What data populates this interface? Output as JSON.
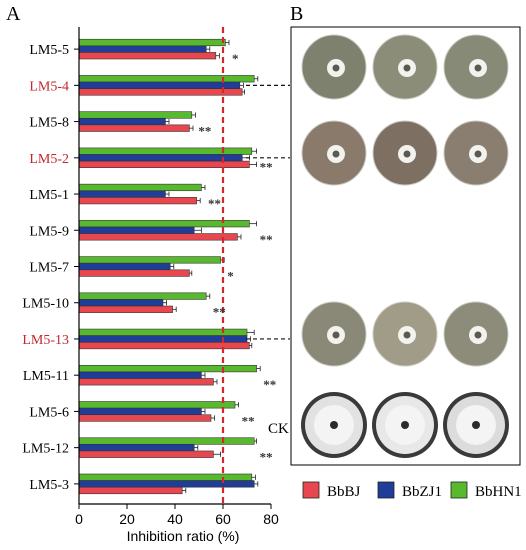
{
  "panels": {
    "a": "A",
    "b": "B"
  },
  "chart_data": {
    "type": "bar",
    "orientation": "horizontal",
    "xlabel": "Inhibition ratio (%)",
    "xlim": [
      0,
      80
    ],
    "xticks": [
      "0",
      "20",
      "40",
      "60",
      "80"
    ],
    "reference_line": 60,
    "categories": [
      "LM5-5",
      "LM5-4",
      "LM5-8",
      "LM5-2",
      "LM5-1",
      "LM5-9",
      "LM5-7",
      "LM5-10",
      "LM5-13",
      "LM5-11",
      "LM5-6",
      "LM5-12",
      "LM5-3"
    ],
    "highlighted": [
      "LM5-4",
      "LM5-2",
      "LM5-13"
    ],
    "significance": [
      "*",
      "",
      "**",
      "**",
      "**",
      "**",
      "*",
      "**",
      "",
      "**",
      "**",
      "**",
      ""
    ],
    "series": [
      {
        "name": "BbHN1",
        "color": "#58b82e",
        "values": [
          61,
          73,
          47,
          72,
          51,
          71,
          59,
          53,
          70,
          74,
          65,
          73,
          72
        ],
        "errors": [
          1.5,
          1.5,
          1.5,
          2,
          1.5,
          3,
          1.5,
          1.5,
          3,
          1.5,
          1.5,
          1,
          1.5
        ]
      },
      {
        "name": "BbZJ1",
        "color": "#1f3d99",
        "values": [
          53,
          67,
          36,
          68,
          36,
          48,
          38,
          35,
          70,
          51,
          51,
          48,
          73
        ],
        "errors": [
          1.5,
          1.5,
          1.5,
          3,
          1.5,
          3,
          1.5,
          1.5,
          1.5,
          1.5,
          1.5,
          1.5,
          1.5
        ]
      },
      {
        "name": "BbBJ",
        "color": "#e8474f",
        "values": [
          57,
          68,
          46,
          71,
          49,
          66,
          46,
          39,
          71,
          56,
          55,
          56,
          43
        ],
        "errors": [
          1.5,
          1,
          1.5,
          3,
          1.5,
          1.5,
          1,
          1.5,
          1,
          1.5,
          1.5,
          3,
          1.5
        ]
      }
    ]
  },
  "panel_b": {
    "ck_label": "CK",
    "dishes": {
      "LM5-4": [
        "#7f816f",
        "#8b8d79",
        "#868a76"
      ],
      "LM5-2": [
        "#8a7a6c",
        "#7d6f62",
        "#8a7e70"
      ],
      "LM5-13": [
        "#8a8978",
        "#a19c88",
        "#8d8c7a"
      ],
      "CK": [
        "#e2e2e2",
        "#e8e8e8",
        "#dcdcdc"
      ]
    },
    "legend": [
      {
        "name": "BbBJ",
        "color": "#e8474f"
      },
      {
        "name": "BbZJ1",
        "color": "#1f3d99"
      },
      {
        "name": "BbHN1",
        "color": "#58b82e"
      }
    ]
  }
}
